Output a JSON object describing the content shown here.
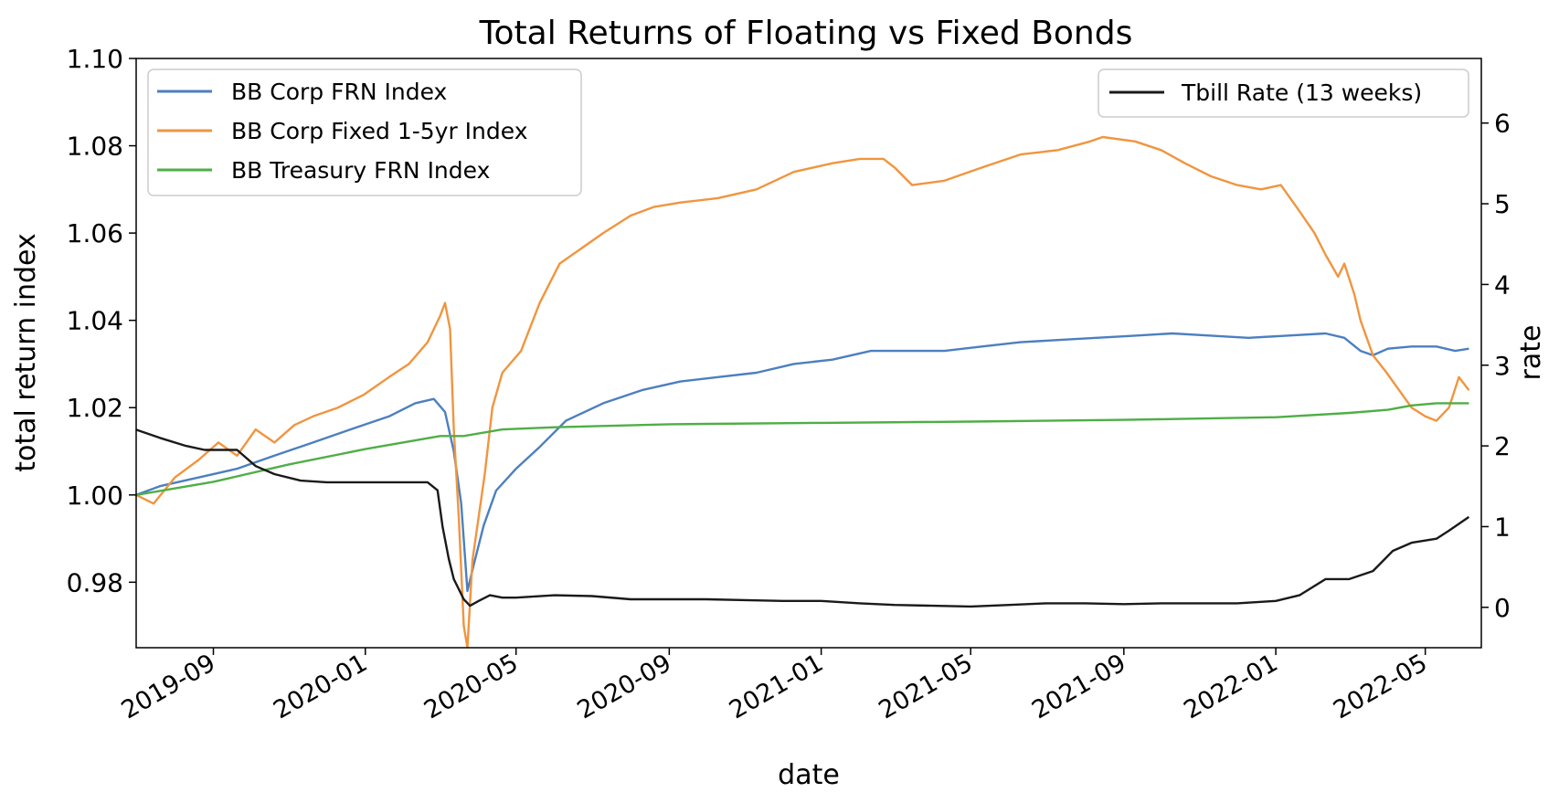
{
  "chart_data": {
    "type": "line",
    "title": "Total Returns of Floating vs Fixed Bonds",
    "xlabel": "date",
    "ylabel": "total return index",
    "y2label": "rate",
    "xlim": [
      "2019-07-01",
      "2022-06-15"
    ],
    "ylim": [
      0.965,
      1.1
    ],
    "y2lim": [
      -0.5,
      6.8
    ],
    "xticks": [
      "2019-09",
      "2020-01",
      "2020-05",
      "2020-09",
      "2021-01",
      "2021-05",
      "2021-09",
      "2022-01",
      "2022-05"
    ],
    "yticks": [
      "0.98",
      "1.00",
      "1.02",
      "1.04",
      "1.06",
      "1.08",
      "1.10"
    ],
    "y2ticks": [
      "0",
      "1",
      "2",
      "3",
      "4",
      "5",
      "6"
    ],
    "legend_left": {
      "placement": "top-left",
      "entries": [
        "BB Corp FRN Index",
        "BB Corp Fixed 1-5yr Index",
        "BB Treasury FRN Index"
      ]
    },
    "legend_right": {
      "placement": "top-right",
      "entries": [
        "Tbill Rate (13 weeks)"
      ]
    },
    "series": [
      {
        "name": "BB Corp FRN Index",
        "axis": "left",
        "color": "#4c7fc0",
        "points": [
          [
            "2019-07-01",
            1.0
          ],
          [
            "2019-07-20",
            1.002
          ],
          [
            "2019-08-20",
            1.004
          ],
          [
            "2019-09-20",
            1.006
          ],
          [
            "2019-10-20",
            1.009
          ],
          [
            "2019-11-20",
            1.012
          ],
          [
            "2019-12-20",
            1.015
          ],
          [
            "2020-01-20",
            1.018
          ],
          [
            "2020-02-10",
            1.021
          ],
          [
            "2020-02-25",
            1.022
          ],
          [
            "2020-03-05",
            1.019
          ],
          [
            "2020-03-12",
            1.01
          ],
          [
            "2020-03-18",
            0.998
          ],
          [
            "2020-03-23",
            0.978
          ],
          [
            "2020-03-28",
            0.984
          ],
          [
            "2020-04-05",
            0.993
          ],
          [
            "2020-04-15",
            1.001
          ],
          [
            "2020-05-01",
            1.006
          ],
          [
            "2020-05-20",
            1.011
          ],
          [
            "2020-06-10",
            1.017
          ],
          [
            "2020-07-10",
            1.021
          ],
          [
            "2020-08-10",
            1.024
          ],
          [
            "2020-09-10",
            1.026
          ],
          [
            "2020-10-10",
            1.027
          ],
          [
            "2020-11-10",
            1.028
          ],
          [
            "2020-12-10",
            1.03
          ],
          [
            "2021-01-10",
            1.031
          ],
          [
            "2021-02-10",
            1.033
          ],
          [
            "2021-03-10",
            1.033
          ],
          [
            "2021-04-10",
            1.033
          ],
          [
            "2021-05-10",
            1.034
          ],
          [
            "2021-06-10",
            1.035
          ],
          [
            "2021-07-10",
            1.0355
          ],
          [
            "2021-08-10",
            1.036
          ],
          [
            "2021-09-10",
            1.0365
          ],
          [
            "2021-10-10",
            1.037
          ],
          [
            "2021-11-10",
            1.0365
          ],
          [
            "2021-12-10",
            1.036
          ],
          [
            "2022-01-10",
            1.0365
          ],
          [
            "2022-02-10",
            1.037
          ],
          [
            "2022-02-25",
            1.036
          ],
          [
            "2022-03-10",
            1.033
          ],
          [
            "2022-03-20",
            1.032
          ],
          [
            "2022-04-01",
            1.0335
          ],
          [
            "2022-04-20",
            1.034
          ],
          [
            "2022-05-10",
            1.034
          ],
          [
            "2022-05-25",
            1.033
          ],
          [
            "2022-06-05",
            1.0335
          ]
        ]
      },
      {
        "name": "BB Corp Fixed 1-5yr Index",
        "axis": "left",
        "color": "#f0953f",
        "points": [
          [
            "2019-07-01",
            1.0
          ],
          [
            "2019-07-15",
            0.998
          ],
          [
            "2019-08-01",
            1.004
          ],
          [
            "2019-08-20",
            1.008
          ],
          [
            "2019-09-05",
            1.012
          ],
          [
            "2019-09-20",
            1.009
          ],
          [
            "2019-10-05",
            1.015
          ],
          [
            "2019-10-20",
            1.012
          ],
          [
            "2019-11-05",
            1.016
          ],
          [
            "2019-11-20",
            1.018
          ],
          [
            "2019-12-10",
            1.02
          ],
          [
            "2019-12-31",
            1.023
          ],
          [
            "2020-01-20",
            1.027
          ],
          [
            "2020-02-05",
            1.03
          ],
          [
            "2020-02-20",
            1.035
          ],
          [
            "2020-03-01",
            1.041
          ],
          [
            "2020-03-05",
            1.044
          ],
          [
            "2020-03-09",
            1.038
          ],
          [
            "2020-03-12",
            1.015
          ],
          [
            "2020-03-16",
            0.995
          ],
          [
            "2020-03-20",
            0.97
          ],
          [
            "2020-03-23",
            0.965
          ],
          [
            "2020-03-27",
            0.985
          ],
          [
            "2020-04-01",
            0.995
          ],
          [
            "2020-04-06",
            1.005
          ],
          [
            "2020-04-12",
            1.02
          ],
          [
            "2020-04-20",
            1.028
          ],
          [
            "2020-05-05",
            1.033
          ],
          [
            "2020-05-20",
            1.044
          ],
          [
            "2020-06-05",
            1.053
          ],
          [
            "2020-06-20",
            1.056
          ],
          [
            "2020-07-10",
            1.06
          ],
          [
            "2020-08-01",
            1.064
          ],
          [
            "2020-08-20",
            1.066
          ],
          [
            "2020-09-10",
            1.067
          ],
          [
            "2020-10-10",
            1.068
          ],
          [
            "2020-11-10",
            1.07
          ],
          [
            "2020-12-10",
            1.074
          ],
          [
            "2021-01-10",
            1.076
          ],
          [
            "2021-02-01",
            1.077
          ],
          [
            "2021-02-20",
            1.077
          ],
          [
            "2021-03-01",
            1.075
          ],
          [
            "2021-03-15",
            1.071
          ],
          [
            "2021-04-10",
            1.072
          ],
          [
            "2021-05-10",
            1.075
          ],
          [
            "2021-06-10",
            1.078
          ],
          [
            "2021-07-10",
            1.079
          ],
          [
            "2021-08-05",
            1.081
          ],
          [
            "2021-08-15",
            1.082
          ],
          [
            "2021-09-10",
            1.081
          ],
          [
            "2021-10-01",
            1.079
          ],
          [
            "2021-10-20",
            1.076
          ],
          [
            "2021-11-10",
            1.073
          ],
          [
            "2021-12-01",
            1.071
          ],
          [
            "2021-12-20",
            1.07
          ],
          [
            "2022-01-05",
            1.071
          ],
          [
            "2022-01-20",
            1.065
          ],
          [
            "2022-02-01",
            1.06
          ],
          [
            "2022-02-10",
            1.055
          ],
          [
            "2022-02-20",
            1.05
          ],
          [
            "2022-02-25",
            1.053
          ],
          [
            "2022-03-05",
            1.046
          ],
          [
            "2022-03-10",
            1.04
          ],
          [
            "2022-03-20",
            1.032
          ],
          [
            "2022-03-31",
            1.028
          ],
          [
            "2022-04-10",
            1.024
          ],
          [
            "2022-04-20",
            1.02
          ],
          [
            "2022-05-01",
            1.018
          ],
          [
            "2022-05-10",
            1.017
          ],
          [
            "2022-05-20",
            1.02
          ],
          [
            "2022-05-28",
            1.027
          ],
          [
            "2022-06-05",
            1.024
          ]
        ]
      },
      {
        "name": "BB Treasury FRN Index",
        "axis": "left",
        "color": "#4fae46",
        "points": [
          [
            "2019-07-01",
            1.0
          ],
          [
            "2019-09-01",
            1.003
          ],
          [
            "2019-11-01",
            1.007
          ],
          [
            "2020-01-01",
            1.0105
          ],
          [
            "2020-03-01",
            1.0135
          ],
          [
            "2020-03-20",
            1.0135
          ],
          [
            "2020-04-20",
            1.015
          ],
          [
            "2020-06-01",
            1.0155
          ],
          [
            "2020-09-01",
            1.0162
          ],
          [
            "2021-01-01",
            1.0165
          ],
          [
            "2021-05-01",
            1.0168
          ],
          [
            "2021-09-01",
            1.0172
          ],
          [
            "2022-01-01",
            1.0178
          ],
          [
            "2022-03-01",
            1.0188
          ],
          [
            "2022-04-01",
            1.0195
          ],
          [
            "2022-04-20",
            1.0205
          ],
          [
            "2022-05-10",
            1.021
          ],
          [
            "2022-06-05",
            1.021
          ]
        ]
      },
      {
        "name": "Tbill Rate (13 weeks)",
        "axis": "right",
        "color": "#1a1a1a",
        "points": [
          [
            "2019-07-01",
            2.2
          ],
          [
            "2019-07-20",
            2.1
          ],
          [
            "2019-08-10",
            2.0
          ],
          [
            "2019-08-25",
            1.95
          ],
          [
            "2019-09-05",
            1.95
          ],
          [
            "2019-09-20",
            1.95
          ],
          [
            "2019-10-05",
            1.75
          ],
          [
            "2019-10-20",
            1.65
          ],
          [
            "2019-11-10",
            1.57
          ],
          [
            "2019-12-01",
            1.55
          ],
          [
            "2019-12-20",
            1.55
          ],
          [
            "2020-01-20",
            1.55
          ],
          [
            "2020-02-20",
            1.55
          ],
          [
            "2020-02-28",
            1.45
          ],
          [
            "2020-03-03",
            1.0
          ],
          [
            "2020-03-08",
            0.6
          ],
          [
            "2020-03-12",
            0.35
          ],
          [
            "2020-03-20",
            0.1
          ],
          [
            "2020-03-25",
            0.02
          ],
          [
            "2020-04-01",
            0.08
          ],
          [
            "2020-04-10",
            0.15
          ],
          [
            "2020-04-20",
            0.12
          ],
          [
            "2020-05-01",
            0.12
          ],
          [
            "2020-06-01",
            0.15
          ],
          [
            "2020-07-01",
            0.14
          ],
          [
            "2020-08-01",
            0.1
          ],
          [
            "2020-09-01",
            0.1
          ],
          [
            "2020-10-01",
            0.1
          ],
          [
            "2020-11-01",
            0.09
          ],
          [
            "2020-12-01",
            0.08
          ],
          [
            "2021-01-01",
            0.08
          ],
          [
            "2021-02-01",
            0.05
          ],
          [
            "2021-03-01",
            0.03
          ],
          [
            "2021-04-01",
            0.02
          ],
          [
            "2021-05-01",
            0.01
          ],
          [
            "2021-06-01",
            0.03
          ],
          [
            "2021-07-01",
            0.05
          ],
          [
            "2021-08-01",
            0.05
          ],
          [
            "2021-09-01",
            0.04
          ],
          [
            "2021-10-01",
            0.05
          ],
          [
            "2021-11-01",
            0.05
          ],
          [
            "2021-12-01",
            0.05
          ],
          [
            "2022-01-01",
            0.08
          ],
          [
            "2022-01-20",
            0.15
          ],
          [
            "2022-02-10",
            0.35
          ],
          [
            "2022-03-01",
            0.35
          ],
          [
            "2022-03-20",
            0.45
          ],
          [
            "2022-04-05",
            0.7
          ],
          [
            "2022-04-20",
            0.8
          ],
          [
            "2022-05-10",
            0.85
          ],
          [
            "2022-05-20",
            0.95
          ],
          [
            "2022-06-05",
            1.12
          ]
        ]
      }
    ]
  }
}
